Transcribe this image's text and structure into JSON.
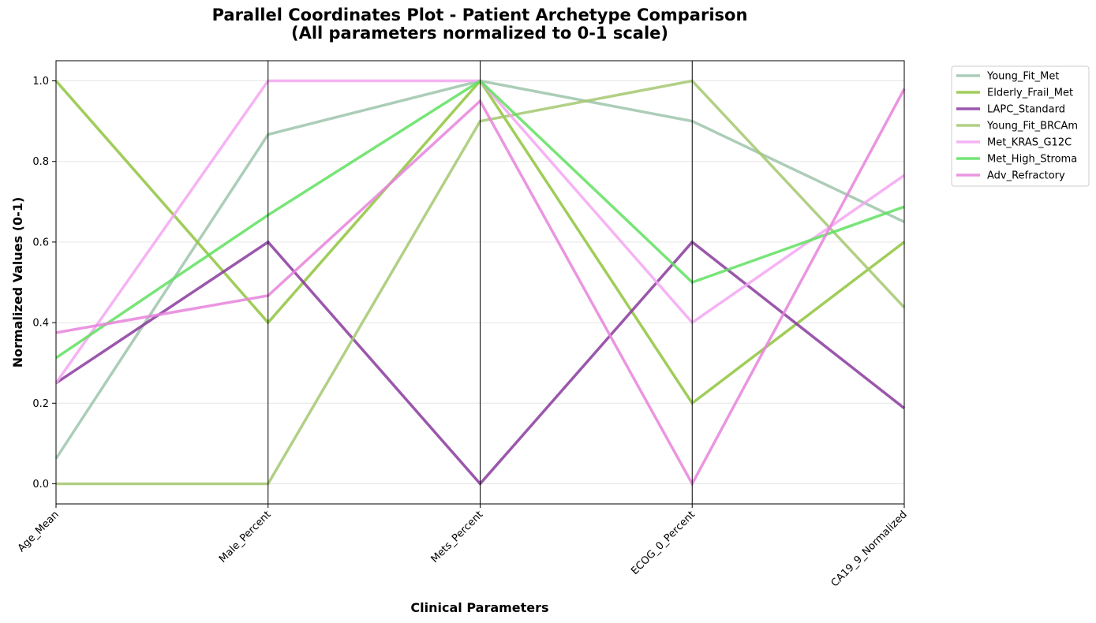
{
  "chart_data": {
    "type": "line",
    "subtype": "parallel-coordinates",
    "title": "Parallel Coordinates Plot - Patient Archetype Comparison",
    "subtitle": "(All parameters normalized to 0-1 scale)",
    "xlabel": "Clinical Parameters",
    "ylabel": "Normalized Values (0-1)",
    "categories": [
      "Age_Mean",
      "Male_Percent",
      "Mets_Percent",
      "ECOG_0_Percent",
      "CA19_9_Normalized"
    ],
    "ylim": [
      -0.05,
      1.05
    ],
    "yticks": [
      0.0,
      0.2,
      0.4,
      0.6,
      0.8,
      1.0
    ],
    "ytick_labels": [
      "0.0",
      "0.2",
      "0.4",
      "0.6",
      "0.8",
      "1.0"
    ],
    "grid": true,
    "legend_position": "outside-right-top",
    "series": [
      {
        "name": "Young_Fit_Met",
        "color": "#9ec4ab",
        "values": [
          0.0625,
          0.867,
          1.0,
          0.9,
          0.65
        ]
      },
      {
        "name": "Elderly_Frail_Met",
        "color": "#8fc43c",
        "values": [
          1.0,
          0.4,
          1.0,
          0.2,
          0.6
        ]
      },
      {
        "name": "LAPC_Standard",
        "color": "#8a3a9e",
        "values": [
          0.25,
          0.6,
          0.0,
          0.6,
          0.1875
        ]
      },
      {
        "name": "Young_Fit_BRCAm",
        "color": "#a4c870",
        "values": [
          0.0,
          0.0,
          0.9,
          1.0,
          0.4375
        ]
      },
      {
        "name": "Met_KRAS_G12C",
        "color": "#f4a6f2",
        "values": [
          0.25,
          1.0,
          1.0,
          0.4,
          0.7656
        ]
      },
      {
        "name": "Met_High_Stroma",
        "color": "#5fe05f",
        "values": [
          0.3125,
          0.667,
          1.0,
          0.5,
          0.6875
        ]
      },
      {
        "name": "Adv_Refractory",
        "color": "#e882dc",
        "values": [
          0.375,
          0.467,
          0.95,
          0.0,
          0.98
        ]
      }
    ]
  }
}
